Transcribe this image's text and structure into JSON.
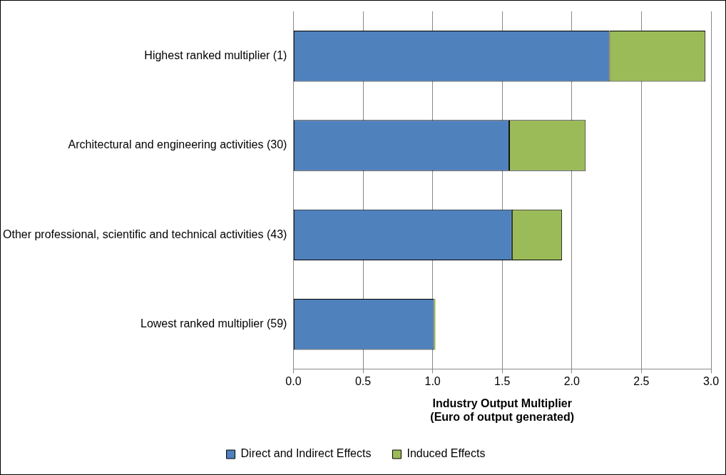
{
  "chart_data": {
    "type": "bar",
    "orientation": "horizontal",
    "stacked": true,
    "xlabel": "Industry Output Multiplier\n(Euro of output generated)",
    "categories": [
      "Highest ranked multiplier (1)",
      "Architectural and engineering activities (30)",
      "Other professional, scientific and technical activities (43)",
      "Lowest ranked multiplier (59)"
    ],
    "series": [
      {
        "name": "Direct and Indirect Effects",
        "color": "#4f81bd",
        "values": [
          2.27,
          1.55,
          1.57,
          1.01
        ]
      },
      {
        "name": "Induced Effects",
        "color": "#9bbb59",
        "values": [
          0.69,
          0.55,
          0.36,
          0.01
        ]
      }
    ],
    "xlim": [
      0,
      3
    ],
    "xticks": [
      {
        "value": 0,
        "label": "0.0"
      },
      {
        "value": 0.5,
        "label": "0.5"
      },
      {
        "value": 1,
        "label": "1.0"
      },
      {
        "value": 1.5,
        "label": "1.5"
      },
      {
        "value": 2,
        "label": "2.0"
      },
      {
        "value": 2.5,
        "label": "2.5"
      },
      {
        "value": 3,
        "label": "3.0"
      }
    ],
    "grid": "x",
    "legend": "bottom"
  }
}
